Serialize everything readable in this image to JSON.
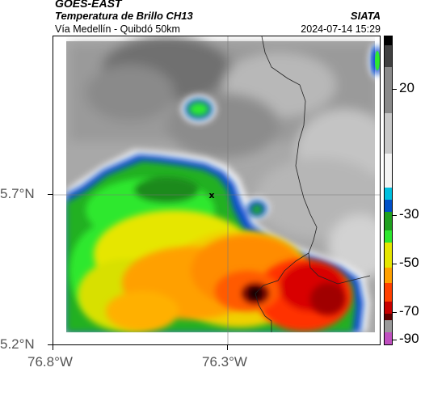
{
  "header": {
    "product": "GOES-EAST",
    "variable": "Temperatura de Brillo CH13",
    "organization": "SIATA",
    "route": "Vía Medellín - Quibdó 50km",
    "timestamp": "2024-07-14 15:29"
  },
  "map": {
    "lat_labels": [
      "5.7°N",
      "5.2°N"
    ],
    "lon_labels": [
      "76.8°W",
      "76.3°W"
    ],
    "marker": "x"
  },
  "colorbar": {
    "labels": [
      "20",
      "-30",
      "-50",
      "-70",
      "-90"
    ],
    "colors": [
      "#000000",
      "#404040",
      "#8a8a8a",
      "#c8c8c8",
      "#f4f4f4",
      "#00c0e0",
      "#0050c8",
      "#1fa01f",
      "#2ee82e",
      "#e6e600",
      "#ffa000",
      "#ff4000",
      "#c80000",
      "#600000",
      "#9a9a9a",
      "#c050c0"
    ]
  }
}
